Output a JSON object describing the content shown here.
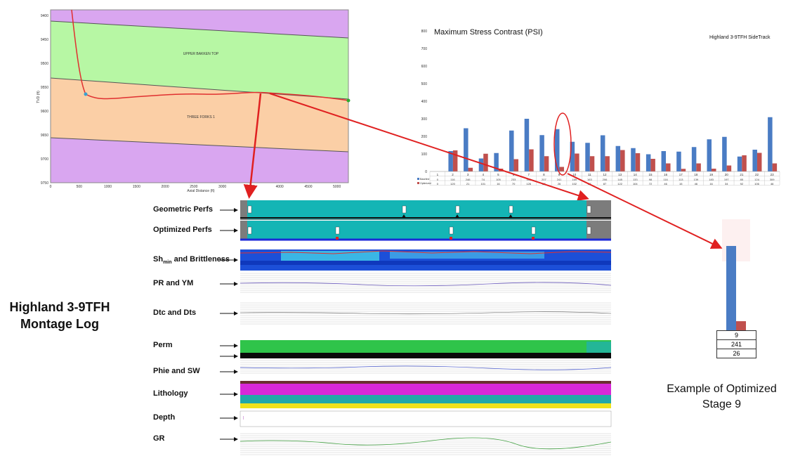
{
  "title": {
    "line1": "Highland 3-9TFH",
    "line2": "Montage Log"
  },
  "cross_section": {
    "upper_label": "UPPER BAKKEN TOP",
    "lower_label": "THREE FORKS 1",
    "x_axis_label": "Axial Distance (ft)",
    "y_axis_label": "TVD (ft)",
    "y_ticks": [
      "9400",
      "9450",
      "9500",
      "9550",
      "9600",
      "9650",
      "9700",
      "9750"
    ],
    "x_ticks": [
      "0",
      "500",
      "1000",
      "1500",
      "2000",
      "2500",
      "3000",
      "3500",
      "4000",
      "4500",
      "5000"
    ],
    "colors": {
      "purple": "#d9a6f0",
      "green": "#b7f7a4",
      "orange": "#fbcfa6",
      "well": "#e03030"
    }
  },
  "chart_data": {
    "type": "bar",
    "title": "Maximum Stress Contrast (PSI)",
    "subtitle": "Highland 3-9TFH SideTrack",
    "categories": [
      "1",
      "2",
      "3",
      "4",
      "5",
      "6",
      "7",
      "8",
      "9",
      "10",
      "11",
      "12",
      "13",
      "14",
      "15",
      "16",
      "17",
      "18",
      "19",
      "20",
      "21",
      "22",
      "23"
    ],
    "ylim": [
      0,
      800
    ],
    "y_ticks": [
      "0",
      "100",
      "200",
      "300",
      "400",
      "500",
      "600",
      "700",
      "800"
    ],
    "series": [
      {
        "name": "Baseline",
        "color": "#4a7cc4",
        "values": [
          0,
          116,
          246,
          74,
          105,
          233,
          300,
          207,
          241,
          169,
          163,
          206,
          145,
          133,
          98,
          116,
          113,
          139,
          183,
          197,
          85,
          124,
          309
        ]
      },
      {
        "name": "Optimized",
        "color": "#c0504d",
        "values": [
          0,
          120,
          21,
          101,
          16,
          70,
          126,
          87,
          26,
          102,
          87,
          87,
          122,
          104,
          72,
          46,
          15,
          46,
          16,
          34,
          92,
          106,
          46
        ]
      }
    ],
    "highlight_category": "9"
  },
  "montage": {
    "tracks": [
      {
        "label": "Geometric Perfs"
      },
      {
        "label": "Optimized Perfs"
      },
      {
        "label_main": "Sh",
        "label_sub": "min",
        "label_rest": " and Brittleness"
      },
      {
        "label": "PR and YM"
      },
      {
        "label": "Dtc and Dts"
      },
      {
        "label": "Perm"
      },
      {
        "label": "Phie and SW"
      },
      {
        "label": "Lithology"
      },
      {
        "label": "Depth"
      },
      {
        "label": "GR"
      }
    ],
    "colors": {
      "cyan": "#14b5b5",
      "blue": "#1c4fd8",
      "green": "#2fc44a",
      "magenta": "#d828d8",
      "yellow": "#f0e21a",
      "gray": "#7c7c7c"
    }
  },
  "stage_example": {
    "values": [
      "9",
      "241",
      "26"
    ],
    "caption_line1": "Example of Optimized",
    "caption_line2": "Stage 9",
    "bar_baseline": 241,
    "bar_optimized": 26
  }
}
